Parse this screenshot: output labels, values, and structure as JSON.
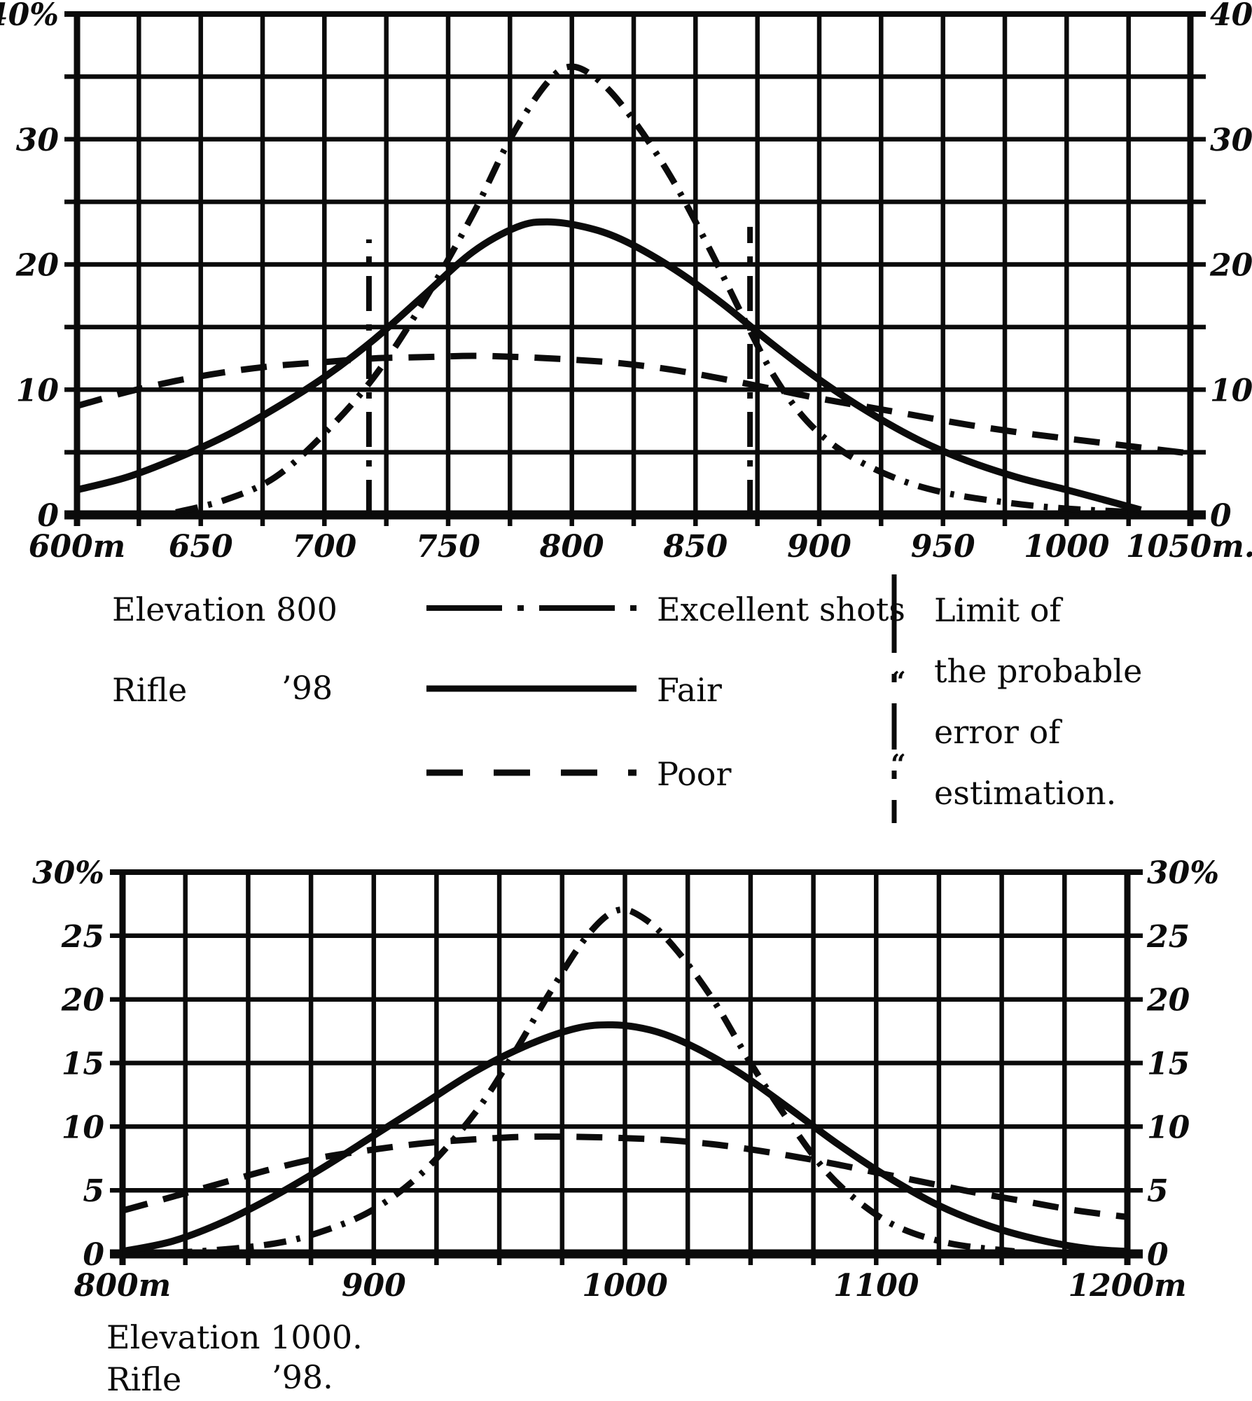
{
  "figure": {
    "background": "#ffffff",
    "ink": "#0b0b0b"
  },
  "legend": {
    "row1": {
      "label": "Elevation 800",
      "series": "Excellent shots"
    },
    "row2": {
      "label_left": "Rifle",
      "label_right": "’98",
      "series": "Fair",
      "ditto": "“"
    },
    "row3": {
      "series": "Poor",
      "ditto": "“"
    },
    "limit_note": {
      "lines": [
        "Limit of",
        "the probable",
        "error of",
        "estimation."
      ]
    }
  },
  "bottom_caption": {
    "line1": "Elevation 1000.",
    "line2_left": "Rifle",
    "line2_right": "’98."
  },
  "chart_data": [
    {
      "type": "line",
      "title": "Elevation 800, Rifle ’98",
      "xlabel": "",
      "ylabel": "",
      "xlim": [
        600,
        1050
      ],
      "ylim": [
        0,
        40
      ],
      "x_grid_step": 25,
      "y_grid_step": 5,
      "grid": true,
      "legend_position": "below",
      "x_ticks": [
        {
          "x": 600,
          "label": "600m"
        },
        {
          "x": 650,
          "label": "650"
        },
        {
          "x": 700,
          "label": "700"
        },
        {
          "x": 750,
          "label": "750"
        },
        {
          "x": 800,
          "label": "800"
        },
        {
          "x": 850,
          "label": "850"
        },
        {
          "x": 900,
          "label": "900"
        },
        {
          "x": 950,
          "label": "950"
        },
        {
          "x": 1000,
          "label": "1000"
        },
        {
          "x": 1050,
          "label": "1050m."
        }
      ],
      "y_ticks": [
        {
          "y": 40,
          "label": "40%"
        },
        {
          "y": 30,
          "label": "30"
        },
        {
          "y": 20,
          "label": "20"
        },
        {
          "y": 10,
          "label": "10"
        },
        {
          "y": 0,
          "label": "0"
        }
      ],
      "series": [
        {
          "name": "Excellent shots",
          "style": "dashdot",
          "points": [
            [
              640,
              0.2
            ],
            [
              660,
              1.2
            ],
            [
              680,
              3.0
            ],
            [
              700,
              6.5
            ],
            [
              720,
              11.0
            ],
            [
              740,
              17.0
            ],
            [
              760,
              24.0
            ],
            [
              775,
              30.0
            ],
            [
              790,
              34.5
            ],
            [
              800,
              35.8
            ],
            [
              812,
              34.5
            ],
            [
              825,
              31.5
            ],
            [
              840,
              27.0
            ],
            [
              855,
              21.5
            ],
            [
              870,
              15.5
            ],
            [
              882,
              11.0
            ],
            [
              895,
              7.5
            ],
            [
              910,
              5.0
            ],
            [
              930,
              3.0
            ],
            [
              950,
              1.8
            ],
            [
              975,
              1.0
            ],
            [
              1000,
              0.5
            ],
            [
              1030,
              0.2
            ]
          ]
        },
        {
          "name": "Fair",
          "style": "solid",
          "points": [
            [
              600,
              2.0
            ],
            [
              620,
              3.0
            ],
            [
              640,
              4.5
            ],
            [
              660,
              6.3
            ],
            [
              680,
              8.5
            ],
            [
              700,
              11.0
            ],
            [
              720,
              14.0
            ],
            [
              740,
              17.5
            ],
            [
              760,
              21.0
            ],
            [
              778,
              23.0
            ],
            [
              790,
              23.4
            ],
            [
              805,
              23.0
            ],
            [
              820,
              22.0
            ],
            [
              840,
              19.8
            ],
            [
              860,
              17.0
            ],
            [
              880,
              13.8
            ],
            [
              900,
              10.8
            ],
            [
              920,
              8.2
            ],
            [
              940,
              6.0
            ],
            [
              960,
              4.3
            ],
            [
              980,
              3.0
            ],
            [
              1000,
              2.0
            ],
            [
              1015,
              1.2
            ],
            [
              1030,
              0.4
            ]
          ]
        },
        {
          "name": "Poor",
          "style": "dashed",
          "points": [
            [
              600,
              8.7
            ],
            [
              620,
              9.8
            ],
            [
              640,
              10.7
            ],
            [
              660,
              11.4
            ],
            [
              680,
              11.9
            ],
            [
              700,
              12.2
            ],
            [
              720,
              12.5
            ],
            [
              740,
              12.6
            ],
            [
              760,
              12.7
            ],
            [
              780,
              12.6
            ],
            [
              800,
              12.4
            ],
            [
              820,
              12.1
            ],
            [
              840,
              11.6
            ],
            [
              860,
              10.9
            ],
            [
              880,
              10.1
            ],
            [
              900,
              9.3
            ],
            [
              920,
              8.6
            ],
            [
              940,
              7.9
            ],
            [
              960,
              7.2
            ],
            [
              980,
              6.6
            ],
            [
              1000,
              6.1
            ],
            [
              1025,
              5.5
            ],
            [
              1050,
              4.9
            ]
          ]
        }
      ],
      "limit_lines": [
        {
          "x": 718,
          "y_top": 22,
          "meaning": "Limit of the probable error of estimation"
        },
        {
          "x": 872,
          "y_top": 23,
          "meaning": "Limit of the probable error of estimation"
        }
      ]
    },
    {
      "type": "line",
      "title": "Elevation 1000, Rifle ’98",
      "xlabel": "",
      "ylabel": "",
      "xlim": [
        800,
        1200
      ],
      "ylim": [
        0,
        30
      ],
      "x_grid_step": 25,
      "y_grid_step": 5,
      "grid": true,
      "x_ticks": [
        {
          "x": 800,
          "label": "800m"
        },
        {
          "x": 900,
          "label": "900"
        },
        {
          "x": 1000,
          "label": "1000"
        },
        {
          "x": 1100,
          "label": "1100"
        },
        {
          "x": 1200,
          "label": "1200m"
        }
      ],
      "y_ticks": [
        {
          "y": 30,
          "label": "30%"
        },
        {
          "y": 25,
          "label": "25"
        },
        {
          "y": 20,
          "label": "20"
        },
        {
          "y": 15,
          "label": "15"
        },
        {
          "y": 10,
          "label": "10"
        },
        {
          "y": 5,
          "label": "5"
        },
        {
          "y": 0,
          "label": "0"
        }
      ],
      "series": [
        {
          "name": "Excellent shots",
          "style": "dashdot",
          "points": [
            [
              800,
              0.0
            ],
            [
              830,
              0.2
            ],
            [
              860,
              0.8
            ],
            [
              880,
              1.8
            ],
            [
              900,
              3.5
            ],
            [
              920,
              6.5
            ],
            [
              940,
              11.0
            ],
            [
              955,
              15.5
            ],
            [
              970,
              20.5
            ],
            [
              985,
              25.0
            ],
            [
              997,
              27.0
            ],
            [
              1008,
              26.3
            ],
            [
              1020,
              24.0
            ],
            [
              1035,
              20.0
            ],
            [
              1050,
              15.0
            ],
            [
              1065,
              10.5
            ],
            [
              1080,
              6.5
            ],
            [
              1095,
              3.8
            ],
            [
              1110,
              2.0
            ],
            [
              1130,
              0.8
            ],
            [
              1155,
              0.2
            ]
          ]
        },
        {
          "name": "Fair",
          "style": "solid",
          "points": [
            [
              800,
              0.2
            ],
            [
              820,
              1.0
            ],
            [
              840,
              2.5
            ],
            [
              860,
              4.5
            ],
            [
              880,
              6.8
            ],
            [
              900,
              9.3
            ],
            [
              920,
              11.8
            ],
            [
              940,
              14.3
            ],
            [
              960,
              16.3
            ],
            [
              980,
              17.7
            ],
            [
              995,
              18.0
            ],
            [
              1010,
              17.6
            ],
            [
              1025,
              16.5
            ],
            [
              1045,
              14.3
            ],
            [
              1065,
              11.5
            ],
            [
              1085,
              8.6
            ],
            [
              1105,
              6.0
            ],
            [
              1125,
              3.8
            ],
            [
              1145,
              2.2
            ],
            [
              1165,
              1.1
            ],
            [
              1185,
              0.4
            ],
            [
              1200,
              0.2
            ]
          ]
        },
        {
          "name": "Poor",
          "style": "dashed",
          "points": [
            [
              800,
              3.4
            ],
            [
              820,
              4.5
            ],
            [
              840,
              5.6
            ],
            [
              860,
              6.7
            ],
            [
              880,
              7.6
            ],
            [
              900,
              8.2
            ],
            [
              920,
              8.7
            ],
            [
              940,
              9.0
            ],
            [
              960,
              9.2
            ],
            [
              980,
              9.2
            ],
            [
              1000,
              9.1
            ],
            [
              1020,
              8.9
            ],
            [
              1040,
              8.5
            ],
            [
              1060,
              7.9
            ],
            [
              1080,
              7.2
            ],
            [
              1100,
              6.4
            ],
            [
              1120,
              5.6
            ],
            [
              1140,
              4.8
            ],
            [
              1160,
              4.1
            ],
            [
              1180,
              3.4
            ],
            [
              1200,
              2.9
            ]
          ]
        }
      ],
      "limit_lines": []
    }
  ]
}
